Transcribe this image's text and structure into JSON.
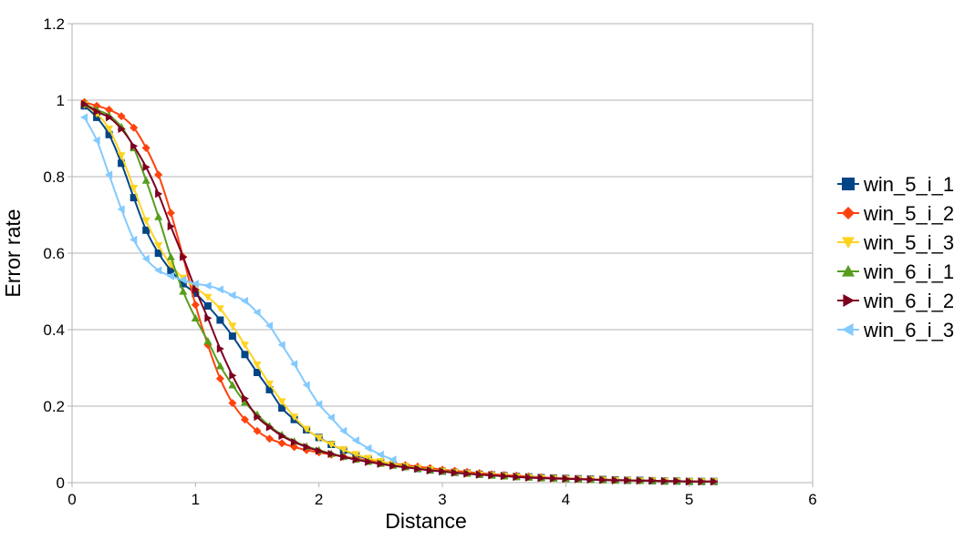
{
  "chart_data": {
    "type": "line",
    "title": "",
    "xlabel": "Distance",
    "ylabel": "Error rate",
    "xlim": [
      0,
      6
    ],
    "ylim": [
      0,
      1.2
    ],
    "xticks": [
      "0",
      "1",
      "2",
      "3",
      "4",
      "5",
      "6"
    ],
    "yticks": [
      "0",
      "0.2",
      "0.4",
      "0.6",
      "0.8",
      "1",
      "1.2"
    ],
    "grid": "horizontal",
    "legend_position": "right",
    "series": [
      {
        "name": "win_5_i_1",
        "color": "#004586",
        "marker": "square",
        "x": [
          0.1,
          0.2,
          0.3,
          0.4,
          0.5,
          0.6,
          0.7,
          0.8,
          0.9,
          1.0,
          1.1,
          1.2,
          1.3,
          1.4,
          1.5,
          1.6,
          1.7,
          1.8,
          1.9,
          2.0,
          2.1,
          2.2,
          2.3,
          2.4,
          2.5,
          2.6,
          2.7,
          2.8,
          2.9,
          3.0,
          3.1,
          3.2,
          3.3,
          3.4,
          3.5,
          3.6,
          3.7,
          3.8,
          3.9,
          4.0,
          4.1,
          4.2,
          4.3,
          4.4,
          4.5,
          4.6,
          4.7,
          4.8,
          4.9,
          5.0,
          5.1,
          5.2
        ],
        "y": [
          0.985,
          0.955,
          0.91,
          0.835,
          0.745,
          0.66,
          0.6,
          0.555,
          0.52,
          0.495,
          0.462,
          0.425,
          0.383,
          0.335,
          0.288,
          0.243,
          0.195,
          0.165,
          0.138,
          0.118,
          0.1,
          0.085,
          0.072,
          0.062,
          0.054,
          0.047,
          0.042,
          0.037,
          0.033,
          0.03,
          0.027,
          0.025,
          0.022,
          0.02,
          0.018,
          0.016,
          0.015,
          0.013,
          0.012,
          0.011,
          0.01,
          0.009,
          0.008,
          0.007,
          0.006,
          0.006,
          0.005,
          0.004,
          0.004,
          0.003,
          0.003,
          0.003
        ]
      },
      {
        "name": "win_5_i_2",
        "color": "#ff420e",
        "marker": "diamond",
        "x": [
          0.1,
          0.2,
          0.3,
          0.4,
          0.5,
          0.6,
          0.7,
          0.8,
          0.9,
          1.0,
          1.1,
          1.2,
          1.3,
          1.4,
          1.5,
          1.6,
          1.7,
          1.8,
          1.9,
          2.0,
          2.1,
          2.2,
          2.3,
          2.4,
          2.5,
          2.6,
          2.7,
          2.8,
          2.9,
          3.0,
          3.1,
          3.2,
          3.3,
          3.4,
          3.5,
          3.6,
          3.7,
          3.8,
          3.9,
          4.0,
          4.1,
          4.2,
          4.3,
          4.4,
          4.5,
          4.6,
          4.7,
          4.8,
          4.9,
          5.0,
          5.1,
          5.2
        ],
        "y": [
          0.995,
          0.985,
          0.975,
          0.958,
          0.928,
          0.875,
          0.805,
          0.705,
          0.59,
          0.465,
          0.36,
          0.272,
          0.208,
          0.165,
          0.135,
          0.115,
          0.103,
          0.093,
          0.085,
          0.079,
          0.073,
          0.068,
          0.063,
          0.058,
          0.054,
          0.05,
          0.046,
          0.042,
          0.038,
          0.034,
          0.031,
          0.028,
          0.025,
          0.022,
          0.02,
          0.018,
          0.016,
          0.014,
          0.012,
          0.011,
          0.01,
          0.009,
          0.008,
          0.007,
          0.006,
          0.005,
          0.005,
          0.004,
          0.004,
          0.003,
          0.003,
          0.003
        ]
      },
      {
        "name": "win_5_i_3",
        "color": "#ffd320",
        "marker": "triangle-down",
        "x": [
          0.1,
          0.2,
          0.3,
          0.4,
          0.5,
          0.6,
          0.7,
          0.8,
          0.9,
          1.0,
          1.1,
          1.2,
          1.3,
          1.4,
          1.5,
          1.6,
          1.7,
          1.8,
          1.9,
          2.0,
          2.1,
          2.2,
          2.3,
          2.4,
          2.5,
          2.6,
          2.7,
          2.8,
          2.9,
          3.0,
          3.1,
          3.2,
          3.3,
          3.4,
          3.5,
          3.6,
          3.7,
          3.8,
          3.9,
          4.0,
          4.1,
          4.2,
          4.3,
          4.4,
          4.5,
          4.6,
          4.7,
          4.8,
          4.9,
          5.0,
          5.1,
          5.2
        ],
        "y": [
          0.988,
          0.965,
          0.925,
          0.855,
          0.77,
          0.685,
          0.62,
          0.57,
          0.535,
          0.51,
          0.485,
          0.455,
          0.41,
          0.36,
          0.308,
          0.258,
          0.212,
          0.172,
          0.14,
          0.117,
          0.1,
          0.086,
          0.074,
          0.064,
          0.056,
          0.049,
          0.043,
          0.038,
          0.034,
          0.03,
          0.027,
          0.024,
          0.021,
          0.019,
          0.017,
          0.015,
          0.014,
          0.012,
          0.011,
          0.01,
          0.009,
          0.008,
          0.007,
          0.006,
          0.006,
          0.005,
          0.005,
          0.004,
          0.004,
          0.003,
          0.003,
          0.003
        ]
      },
      {
        "name": "win_6_i_1",
        "color": "#579d1c",
        "marker": "triangle-up",
        "x": [
          0.1,
          0.2,
          0.3,
          0.4,
          0.5,
          0.6,
          0.7,
          0.8,
          0.9,
          1.0,
          1.1,
          1.2,
          1.3,
          1.4,
          1.5,
          1.6,
          1.7,
          1.8,
          1.9,
          2.0,
          2.1,
          2.2,
          2.3,
          2.4,
          2.5,
          2.6,
          2.7,
          2.8,
          2.9,
          3.0,
          3.1,
          3.2,
          3.3,
          3.4,
          3.5,
          3.6,
          3.7,
          3.8,
          3.9,
          4.0,
          4.1,
          4.2,
          4.3,
          4.4,
          4.5,
          4.6,
          4.7,
          4.8,
          4.9,
          5.0,
          5.1,
          5.2
        ],
        "y": [
          0.99,
          0.975,
          0.96,
          0.93,
          0.875,
          0.79,
          0.695,
          0.59,
          0.5,
          0.43,
          0.37,
          0.305,
          0.255,
          0.21,
          0.178,
          0.148,
          0.125,
          0.108,
          0.095,
          0.085,
          0.076,
          0.068,
          0.061,
          0.055,
          0.05,
          0.045,
          0.041,
          0.037,
          0.033,
          0.03,
          0.027,
          0.024,
          0.021,
          0.019,
          0.017,
          0.015,
          0.014,
          0.012,
          0.011,
          0.01,
          0.009,
          0.008,
          0.007,
          0.006,
          0.006,
          0.005,
          0.005,
          0.004,
          0.004,
          0.003,
          0.003,
          0.003
        ]
      },
      {
        "name": "win_6_i_2",
        "color": "#7e0021",
        "marker": "triangle-right",
        "x": [
          0.1,
          0.2,
          0.3,
          0.4,
          0.5,
          0.6,
          0.7,
          0.8,
          0.9,
          1.0,
          1.1,
          1.2,
          1.3,
          1.4,
          1.5,
          1.6,
          1.7,
          1.8,
          1.9,
          2.0,
          2.1,
          2.2,
          2.3,
          2.4,
          2.5,
          2.6,
          2.7,
          2.8,
          2.9,
          3.0,
          3.1,
          3.2,
          3.3,
          3.4,
          3.5,
          3.6,
          3.7,
          3.8,
          3.9,
          4.0,
          4.1,
          4.2,
          4.3,
          4.4,
          4.5,
          4.6,
          4.7,
          4.8,
          4.9,
          5.0,
          5.1,
          5.2
        ],
        "y": [
          0.99,
          0.97,
          0.955,
          0.925,
          0.88,
          0.825,
          0.755,
          0.67,
          0.59,
          0.505,
          0.43,
          0.35,
          0.28,
          0.22,
          0.172,
          0.145,
          0.122,
          0.106,
          0.093,
          0.083,
          0.075,
          0.067,
          0.06,
          0.054,
          0.049,
          0.044,
          0.04,
          0.036,
          0.032,
          0.029,
          0.026,
          0.023,
          0.021,
          0.019,
          0.017,
          0.015,
          0.013,
          0.012,
          0.011,
          0.01,
          0.009,
          0.008,
          0.007,
          0.006,
          0.006,
          0.005,
          0.005,
          0.004,
          0.004,
          0.003,
          0.003,
          0.003
        ]
      },
      {
        "name": "win_6_i_3",
        "color": "#83caff",
        "marker": "triangle-left",
        "x": [
          0.1,
          0.2,
          0.3,
          0.4,
          0.5,
          0.6,
          0.7,
          0.8,
          0.9,
          1.0,
          1.1,
          1.2,
          1.3,
          1.4,
          1.5,
          1.6,
          1.7,
          1.8,
          1.9,
          2.0,
          2.1,
          2.2,
          2.3,
          2.4,
          2.5,
          2.6
        ],
        "y": [
          0.955,
          0.895,
          0.805,
          0.715,
          0.635,
          0.585,
          0.555,
          0.54,
          0.53,
          0.52,
          0.515,
          0.505,
          0.49,
          0.475,
          0.445,
          0.41,
          0.36,
          0.31,
          0.255,
          0.205,
          0.17,
          0.135,
          0.11,
          0.09,
          0.073,
          0.06
        ]
      }
    ]
  }
}
